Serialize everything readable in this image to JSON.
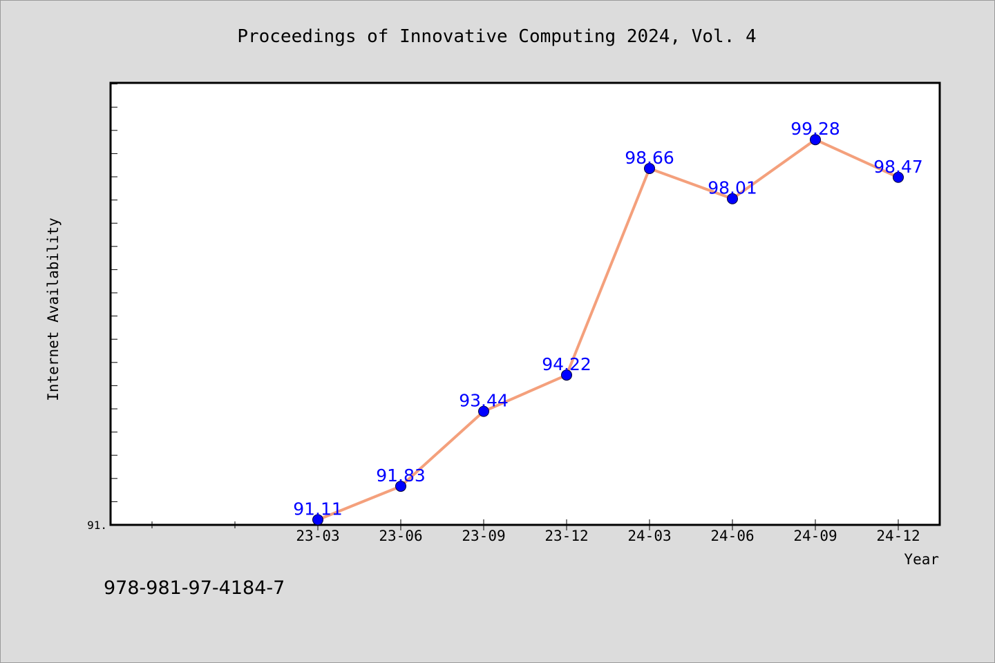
{
  "chart_data": {
    "type": "line",
    "title": "Proceedings of Innovative Computing 2024, Vol. 4",
    "xlabel": "Year",
    "ylabel": "Internet Availability",
    "categories": [
      "23-03",
      "23-06",
      "23-09",
      "23-12",
      "24-03",
      "24-06",
      "24-09",
      "24-12"
    ],
    "series": [
      {
        "values": [
          91.11,
          91.83,
          93.44,
          94.22,
          98.66,
          98.01,
          99.28,
          98.47
        ]
      }
    ],
    "data_labels": [
      "91.11",
      "91.83",
      "93.44",
      "94.22",
      "98.66",
      "98.01",
      "99.28",
      "98.47"
    ],
    "y_tick_label": "91.",
    "ylim": [
      91.0,
      100.5
    ],
    "grid": false,
    "line_color": "#f4a07c",
    "marker_color": "#0000ff",
    "label_color": "#0000ff"
  },
  "footer": {
    "isbn": "978-981-97-4184-7"
  }
}
